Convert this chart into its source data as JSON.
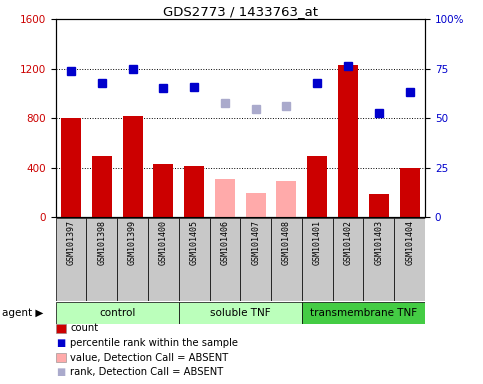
{
  "title": "GDS2773 / 1433763_at",
  "samples": [
    "GSM101397",
    "GSM101398",
    "GSM101399",
    "GSM101400",
    "GSM101405",
    "GSM101406",
    "GSM101407",
    "GSM101408",
    "GSM101401",
    "GSM101402",
    "GSM101403",
    "GSM101404"
  ],
  "bar_values": [
    800,
    490,
    820,
    430,
    410,
    310,
    190,
    290,
    490,
    1230,
    185,
    400
  ],
  "bar_absent": [
    false,
    false,
    false,
    false,
    false,
    true,
    true,
    true,
    false,
    false,
    false,
    false
  ],
  "dot_values": [
    1180,
    1080,
    1195,
    1040,
    1050,
    920,
    870,
    900,
    1085,
    1220,
    840,
    1010
  ],
  "dot_absent": [
    false,
    false,
    false,
    false,
    false,
    true,
    true,
    true,
    false,
    false,
    false,
    false
  ],
  "ylim_left": [
    0,
    1600
  ],
  "yticks_left": [
    0,
    400,
    800,
    1200,
    1600
  ],
  "yticks_right": [
    0,
    25,
    50,
    75,
    100
  ],
  "bar_color_present": "#cc0000",
  "bar_color_absent": "#ffaaaa",
  "dot_color_present": "#0000cc",
  "dot_color_absent": "#aaaacc",
  "background_label": "#c8c8c8",
  "group_bg_light": "#bbffbb",
  "group_bg_dark": "#44cc44",
  "legend_items": [
    {
      "label": "count",
      "type": "bar",
      "color": "#cc0000"
    },
    {
      "label": "percentile rank within the sample",
      "type": "dot",
      "color": "#0000cc"
    },
    {
      "label": "value, Detection Call = ABSENT",
      "type": "bar",
      "color": "#ffaaaa"
    },
    {
      "label": "rank, Detection Call = ABSENT",
      "type": "dot",
      "color": "#aaaacc"
    }
  ],
  "group_configs": [
    {
      "label": "control",
      "start": 0,
      "end": 3,
      "color": "#bbffbb"
    },
    {
      "label": "soluble TNF",
      "start": 4,
      "end": 7,
      "color": "#bbffbb"
    },
    {
      "label": "transmembrane TNF",
      "start": 8,
      "end": 11,
      "color": "#44cc44"
    }
  ]
}
